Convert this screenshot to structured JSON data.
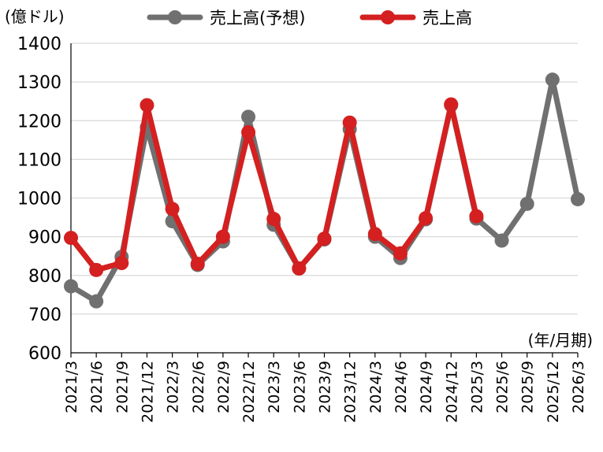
{
  "chart_data": {
    "type": "line",
    "y_unit_label": "(億ドル)",
    "x_unit_label": "(年/月期)",
    "ylim": [
      600,
      1400
    ],
    "yticks": [
      600,
      700,
      800,
      900,
      1000,
      1100,
      1200,
      1300,
      1400
    ],
    "grid": true,
    "legend_position": "top",
    "categories": [
      "2021/3",
      "2021/6",
      "2021/9",
      "2021/12",
      "2022/3",
      "2022/6",
      "2022/9",
      "2022/12",
      "2023/3",
      "2023/6",
      "2023/9",
      "2023/12",
      "2024/3",
      "2024/6",
      "2024/9",
      "2024/12",
      "2025/3",
      "2025/6",
      "2025/9",
      "2025/12",
      "2026/3"
    ],
    "series": [
      {
        "name": "売上高(予想)",
        "color": "#707070",
        "values": [
          772,
          733,
          848,
          1183,
          940,
          827,
          888,
          1210,
          931,
          818,
          893,
          1178,
          900,
          845,
          945,
          1240,
          947,
          890,
          985,
          1306,
          997
        ]
      },
      {
        "name": "売上高",
        "color": "#d42020",
        "values": [
          897,
          814,
          832,
          1240,
          972,
          830,
          900,
          1170,
          946,
          818,
          895,
          1195,
          907,
          857,
          948,
          1242,
          953,
          null,
          null,
          null,
          null
        ]
      }
    ]
  }
}
